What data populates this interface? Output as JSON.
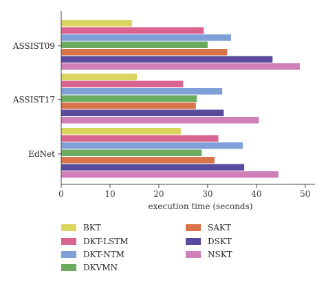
{
  "chart_data": {
    "type": "bar",
    "orientation": "horizontal",
    "categories": [
      "ASSIST09",
      "ASSIST17",
      "EdNet"
    ],
    "xlabel": "execution time (seconds)",
    "ylabel": "",
    "xlim": [
      0,
      52
    ],
    "xticks": [
      "0",
      "10",
      "20",
      "30",
      "40",
      "50"
    ],
    "grid": false,
    "legend_position": "bottom",
    "series": [
      {
        "name": "BKT",
        "color": "#d9d55f",
        "values": [
          14.5,
          15.5,
          24.5
        ]
      },
      {
        "name": "DKT-LSTM",
        "color": "#d9648f",
        "values": [
          29.2,
          25.0,
          32.2
        ]
      },
      {
        "name": "DKT-NTM",
        "color": "#7f9fd9",
        "values": [
          34.8,
          33.0,
          37.2
        ]
      },
      {
        "name": "DKVMN",
        "color": "#6aab5f",
        "values": [
          30.0,
          27.8,
          28.8
        ]
      },
      {
        "name": "SAKT",
        "color": "#d9744a",
        "values": [
          34.0,
          27.6,
          31.4
        ]
      },
      {
        "name": "DSKT",
        "color": "#5a4a9e",
        "values": [
          43.3,
          33.3,
          37.5
        ]
      },
      {
        "name": "NSKT",
        "color": "#cf80b8",
        "values": [
          48.9,
          40.5,
          44.5
        ]
      }
    ]
  }
}
